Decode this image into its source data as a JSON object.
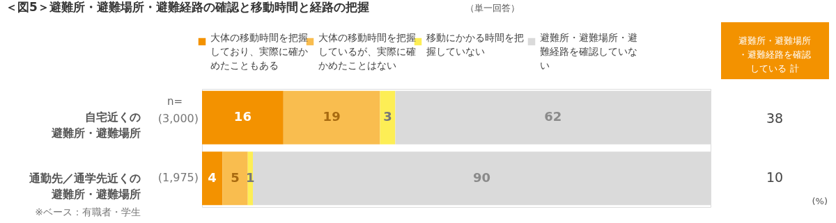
{
  "chart_data": {
    "type": "bar",
    "orientation": "horizontal",
    "stacked": true,
    "data_labels": true,
    "legend": "top",
    "title": "＜図5＞避難所・避難場所・避難経路の確認と移動時間と経路の把握",
    "subtitle": "（単一回答）",
    "categories": [
      "自宅近くの避難所・避難場所",
      "通勤先／通学先近くの避難所・避難場所"
    ],
    "series": [
      {
        "name": "大体の移動時間を把握しており、実際に確かめたこともある",
        "color": "#f39200",
        "values": [
          16,
          4
        ]
      },
      {
        "name": "大体の移動時間を把握しているが、実際に確かめたことはない",
        "color": "#f9bd4f",
        "values": [
          19,
          5
        ]
      },
      {
        "name": "移動にかかる時間を把握していない",
        "color": "#fdee55",
        "values": [
          3,
          1
        ]
      },
      {
        "name": "避難所・避難場所・避難経路を確認していない",
        "color": "#dadada",
        "values": [
          62,
          90
        ]
      }
    ],
    "annotations": [
      "避難所・避難場所・避難経路を確認している 計",
      "n=",
      "(3,000)",
      "(1,975)",
      "38",
      "10",
      "※ベース：有職者・学生",
      "(%)"
    ]
  }
}
